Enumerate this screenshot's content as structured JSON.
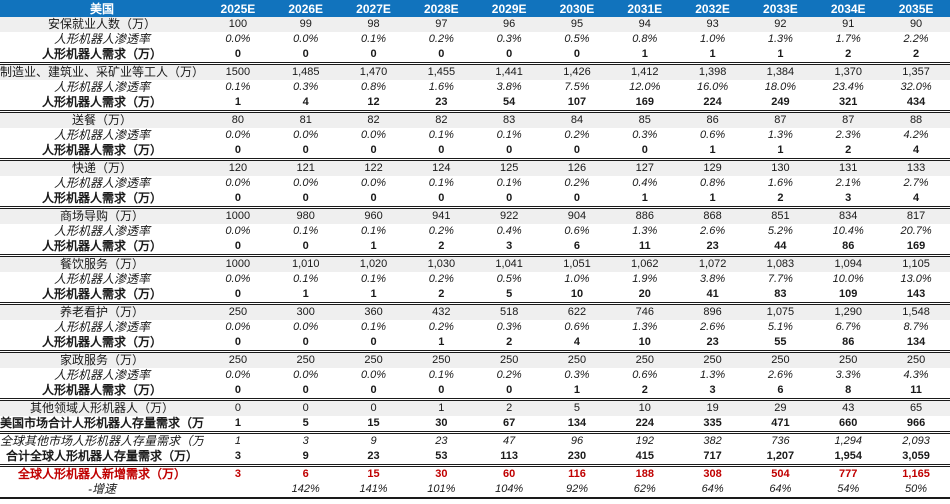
{
  "colors": {
    "header_bg": "#1173BD",
    "header_text": "#FFFFFF",
    "stripe_bg": "#EFEFEF",
    "accent_red": "#C00000",
    "border": "#1A1A1A"
  },
  "chart_data": {
    "type": "table",
    "corner_label": "美国",
    "columns": [
      "2025E",
      "2026E",
      "2027E",
      "2028E",
      "2029E",
      "2030E",
      "2031E",
      "2032E",
      "2033E",
      "2034E",
      "2035E"
    ],
    "rows": [
      {
        "label": "安保就业人数（万）",
        "style": "category",
        "group_end": false,
        "values": [
          "100",
          "99",
          "98",
          "97",
          "96",
          "95",
          "94",
          "93",
          "92",
          "91",
          "90"
        ]
      },
      {
        "label": "人形机器人渗透率",
        "style": "penetration",
        "group_end": false,
        "values": [
          "0.0%",
          "0.0%",
          "0.1%",
          "0.2%",
          "0.3%",
          "0.5%",
          "0.8%",
          "1.0%",
          "1.3%",
          "1.7%",
          "2.2%"
        ]
      },
      {
        "label": "人形机器人需求（万）",
        "style": "demand",
        "group_end": true,
        "values": [
          "0",
          "0",
          "0",
          "0",
          "0",
          "0",
          "1",
          "1",
          "1",
          "2",
          "2"
        ]
      },
      {
        "label": "制造业、建筑业、采矿业等工人（万）",
        "style": "category",
        "group_end": false,
        "values": [
          "1500",
          "1,485",
          "1,470",
          "1,455",
          "1,441",
          "1,426",
          "1,412",
          "1,398",
          "1,384",
          "1,370",
          "1,357"
        ]
      },
      {
        "label": "人形机器人渗透率",
        "style": "penetration",
        "group_end": false,
        "values": [
          "0.1%",
          "0.3%",
          "0.8%",
          "1.6%",
          "3.8%",
          "7.5%",
          "12.0%",
          "16.0%",
          "18.0%",
          "23.4%",
          "32.0%"
        ]
      },
      {
        "label": "人形机器人需求（万）",
        "style": "demand",
        "group_end": true,
        "values": [
          "1",
          "4",
          "12",
          "23",
          "54",
          "107",
          "169",
          "224",
          "249",
          "321",
          "434"
        ]
      },
      {
        "label": "送餐（万）",
        "style": "category",
        "group_end": false,
        "values": [
          "80",
          "81",
          "82",
          "82",
          "83",
          "84",
          "85",
          "86",
          "87",
          "87",
          "88"
        ]
      },
      {
        "label": "人形机器人渗透率",
        "style": "penetration",
        "group_end": false,
        "values": [
          "0.0%",
          "0.0%",
          "0.0%",
          "0.1%",
          "0.1%",
          "0.2%",
          "0.3%",
          "0.6%",
          "1.3%",
          "2.3%",
          "4.2%"
        ]
      },
      {
        "label": "人形机器人需求（万）",
        "style": "demand",
        "group_end": true,
        "values": [
          "0",
          "0",
          "0",
          "0",
          "0",
          "0",
          "0",
          "1",
          "1",
          "2",
          "4"
        ]
      },
      {
        "label": "快递（万）",
        "style": "category",
        "group_end": false,
        "values": [
          "120",
          "121",
          "122",
          "124",
          "125",
          "126",
          "127",
          "129",
          "130",
          "131",
          "133"
        ]
      },
      {
        "label": "人形机器人渗透率",
        "style": "penetration",
        "group_end": false,
        "values": [
          "0.0%",
          "0.0%",
          "0.0%",
          "0.1%",
          "0.1%",
          "0.2%",
          "0.4%",
          "0.8%",
          "1.6%",
          "2.1%",
          "2.7%"
        ]
      },
      {
        "label": "人形机器人需求（万）",
        "style": "demand",
        "group_end": true,
        "values": [
          "0",
          "0",
          "0",
          "0",
          "0",
          "0",
          "1",
          "1",
          "2",
          "3",
          "4"
        ]
      },
      {
        "label": "商场导购（万）",
        "style": "category",
        "group_end": false,
        "values": [
          "1000",
          "980",
          "960",
          "941",
          "922",
          "904",
          "886",
          "868",
          "851",
          "834",
          "817"
        ]
      },
      {
        "label": "人形机器人渗透率",
        "style": "penetration",
        "group_end": false,
        "values": [
          "0.0%",
          "0.1%",
          "0.1%",
          "0.2%",
          "0.4%",
          "0.6%",
          "1.3%",
          "2.6%",
          "5.2%",
          "10.4%",
          "20.7%"
        ]
      },
      {
        "label": "人形机器人需求（万）",
        "style": "demand",
        "group_end": true,
        "values": [
          "0",
          "0",
          "1",
          "2",
          "3",
          "6",
          "11",
          "23",
          "44",
          "86",
          "169"
        ]
      },
      {
        "label": "餐饮服务（万）",
        "style": "category",
        "group_end": false,
        "values": [
          "1000",
          "1,010",
          "1,020",
          "1,030",
          "1,041",
          "1,051",
          "1,062",
          "1,072",
          "1,083",
          "1,094",
          "1,105"
        ]
      },
      {
        "label": "人形机器人渗透率",
        "style": "penetration",
        "group_end": false,
        "values": [
          "0.0%",
          "0.1%",
          "0.1%",
          "0.2%",
          "0.5%",
          "1.0%",
          "1.9%",
          "3.8%",
          "7.7%",
          "10.0%",
          "13.0%"
        ]
      },
      {
        "label": "人形机器人需求（万）",
        "style": "demand",
        "group_end": true,
        "values": [
          "0",
          "1",
          "1",
          "2",
          "5",
          "10",
          "20",
          "41",
          "83",
          "109",
          "143"
        ]
      },
      {
        "label": "养老看护（万）",
        "style": "category",
        "group_end": false,
        "values": [
          "250",
          "300",
          "360",
          "432",
          "518",
          "622",
          "746",
          "896",
          "1,075",
          "1,290",
          "1,548"
        ]
      },
      {
        "label": "人形机器人渗透率",
        "style": "penetration",
        "group_end": false,
        "values": [
          "0.0%",
          "0.0%",
          "0.1%",
          "0.2%",
          "0.3%",
          "0.6%",
          "1.3%",
          "2.6%",
          "5.1%",
          "6.7%",
          "8.7%"
        ]
      },
      {
        "label": "人形机器人需求（万）",
        "style": "demand",
        "group_end": true,
        "values": [
          "0",
          "0",
          "0",
          "1",
          "2",
          "4",
          "10",
          "23",
          "55",
          "86",
          "134"
        ]
      },
      {
        "label": "家政服务（万）",
        "style": "category",
        "group_end": false,
        "values": [
          "250",
          "250",
          "250",
          "250",
          "250",
          "250",
          "250",
          "250",
          "250",
          "250",
          "250"
        ]
      },
      {
        "label": "人形机器人渗透率",
        "style": "penetration",
        "group_end": false,
        "values": [
          "0.0%",
          "0.0%",
          "0.0%",
          "0.1%",
          "0.2%",
          "0.3%",
          "0.6%",
          "1.3%",
          "2.6%",
          "3.3%",
          "4.3%"
        ]
      },
      {
        "label": "人形机器人需求（万）",
        "style": "demand",
        "group_end": true,
        "values": [
          "0",
          "0",
          "0",
          "0",
          "0",
          "1",
          "2",
          "3",
          "6",
          "8",
          "11"
        ]
      },
      {
        "label": "其他领域人形机器人（万）",
        "style": "category",
        "group_end": false,
        "values": [
          "0",
          "0",
          "0",
          "1",
          "2",
          "5",
          "10",
          "19",
          "29",
          "43",
          "65"
        ]
      },
      {
        "label": "美国市场合计人形机器人存量需求（万）",
        "style": "us_total",
        "group_end": true,
        "values": [
          "1",
          "5",
          "15",
          "30",
          "67",
          "134",
          "224",
          "335",
          "471",
          "660",
          "966"
        ]
      },
      {
        "label": "全球其他市场人形机器人存量需求（万）",
        "style": "global_other",
        "group_end": false,
        "values": [
          "1",
          "3",
          "9",
          "23",
          "47",
          "96",
          "192",
          "382",
          "736",
          "1,294",
          "2,093"
        ]
      },
      {
        "label": "合计全球人形机器人存量需求（万）",
        "style": "global_total",
        "group_end": true,
        "values": [
          "3",
          "9",
          "23",
          "53",
          "113",
          "230",
          "415",
          "717",
          "1,207",
          "1,954",
          "3,059"
        ]
      },
      {
        "label": "全球人形机器人新增需求（万）",
        "style": "new_demand",
        "group_end": false,
        "values": [
          "3",
          "6",
          "15",
          "30",
          "60",
          "116",
          "188",
          "308",
          "504",
          "777",
          "1,165"
        ]
      },
      {
        "label": "-增速",
        "style": "growth",
        "group_end": false,
        "values": [
          "",
          "142%",
          "141%",
          "101%",
          "104%",
          "92%",
          "62%",
          "64%",
          "64%",
          "54%",
          "50%"
        ]
      }
    ]
  }
}
